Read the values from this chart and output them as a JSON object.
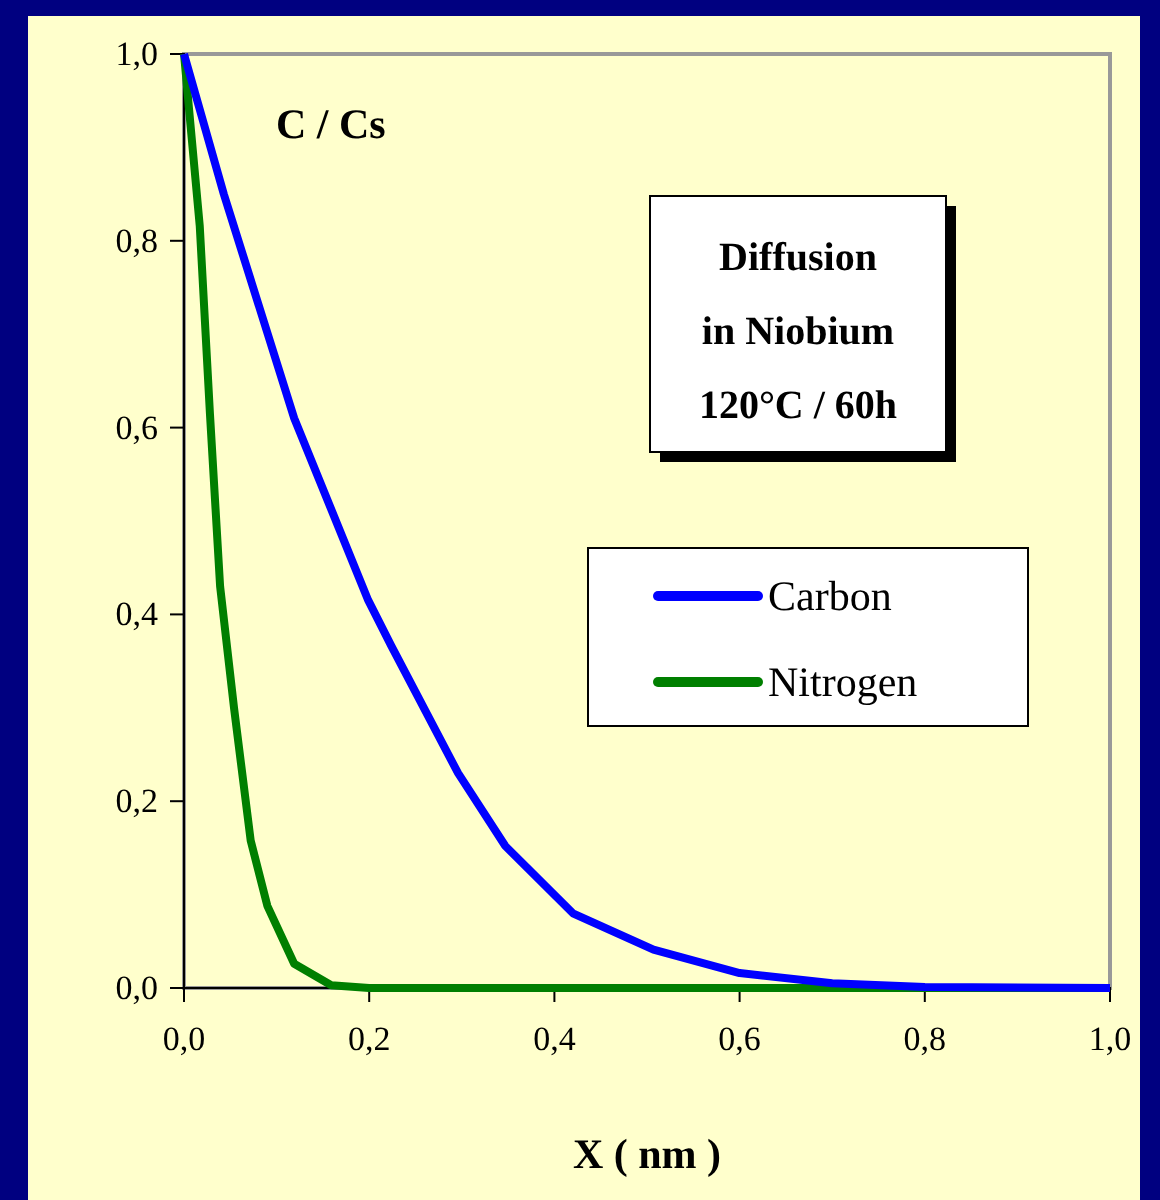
{
  "chart_data": {
    "type": "line",
    "xlabel": "X ( nm )",
    "annotations": [
      "C / Cs",
      "Diffusion\nin Niobium\n120°C / 60h"
    ],
    "xlim": [
      0,
      1
    ],
    "ylim": [
      0,
      1
    ],
    "xticks": [
      {
        "value": 0,
        "label": "0,0"
      },
      {
        "value": 0.2,
        "label": "0,2"
      },
      {
        "value": 0.4,
        "label": "0,4"
      },
      {
        "value": 0.6,
        "label": "0,6"
      },
      {
        "value": 0.8,
        "label": "0,8"
      },
      {
        "value": 1,
        "label": "1,0"
      }
    ],
    "yticks": [
      {
        "value": 0,
        "label": "0,0"
      },
      {
        "value": 0.2,
        "label": "0,2"
      },
      {
        "value": 0.4,
        "label": "0,4"
      },
      {
        "value": 0.6,
        "label": "0,6"
      },
      {
        "value": 0.8,
        "label": "0,8"
      },
      {
        "value": 1,
        "label": "1,0"
      }
    ],
    "grid": false,
    "legend": "right",
    "marker": "none",
    "line_style": "solid",
    "series": [
      {
        "name": "Carbon",
        "color": "#0000ff",
        "x": [
          0,
          0.043,
          0.119,
          0.199,
          0.224,
          0.296,
          0.347,
          0.42,
          0.507,
          0.6,
          0.7,
          0.8,
          1.0
        ],
        "values": [
          1,
          0.85,
          0.61,
          0.415,
          0.366,
          0.23,
          0.152,
          0.08,
          0.041,
          0.016,
          0.005,
          0.001,
          0
        ]
      },
      {
        "name": "Nitrogen",
        "color": "#007f00",
        "x": [
          0,
          0.017,
          0.028,
          0.039,
          0.054,
          0.072,
          0.09,
          0.119,
          0.159,
          0.2,
          1.0
        ],
        "values": [
          1,
          0.816,
          0.615,
          0.43,
          0.3,
          0.158,
          0.088,
          0.026,
          0.003,
          0,
          0
        ]
      }
    ]
  }
}
